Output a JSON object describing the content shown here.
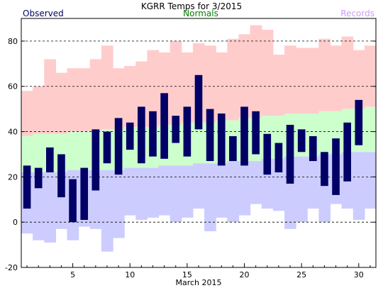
{
  "chart_data": {
    "type": "bar",
    "title": "KGRR Temps for 3/2015",
    "xlabel": "March 2015",
    "ylabel": "",
    "legend": {
      "observed": "Observed",
      "normals": "Normals",
      "records": "Records"
    },
    "colors": {
      "observed": "#000066",
      "normals": "#008000",
      "records": "#cc99ff",
      "record_high_fill": "#ffcccc",
      "normal_fill": "#ccffcc",
      "record_low_fill": "#ccccff"
    },
    "xlim": [
      0.5,
      31.5
    ],
    "ylim": [
      -20,
      90
    ],
    "x_ticks": [
      5,
      10,
      15,
      20,
      25,
      30
    ],
    "y_ticks": [
      -20,
      0,
      20,
      40,
      60,
      80
    ],
    "grid": "dashed horizontal",
    "days": [
      1,
      2,
      3,
      4,
      5,
      6,
      7,
      8,
      9,
      10,
      11,
      12,
      13,
      14,
      15,
      16,
      17,
      18,
      19,
      20,
      21,
      22,
      23,
      24,
      25,
      26,
      27,
      28,
      29,
      30,
      31
    ],
    "record_high": [
      58,
      60,
      72,
      66,
      68,
      68,
      72,
      78,
      68,
      69,
      71,
      76,
      75,
      80,
      75,
      79,
      78,
      75,
      81,
      83,
      87,
      85,
      74,
      78,
      77,
      77,
      81,
      78,
      82,
      76,
      78
    ],
    "normal_high": [
      38,
      39,
      39,
      39,
      40,
      40,
      40,
      41,
      41,
      42,
      42,
      42,
      43,
      43,
      44,
      44,
      44,
      45,
      45,
      46,
      46,
      47,
      47,
      48,
      48,
      48,
      49,
      49,
      50,
      50,
      51
    ],
    "normal_low": [
      22,
      22,
      22,
      22,
      23,
      23,
      23,
      23,
      23,
      24,
      24,
      24,
      25,
      25,
      25,
      26,
      26,
      26,
      27,
      27,
      27,
      28,
      28,
      29,
      29,
      29,
      30,
      30,
      31,
      31,
      31
    ],
    "record_low": [
      -5,
      -8,
      -9,
      -3,
      -8,
      -2,
      -3,
      -13,
      -7,
      3,
      1,
      2,
      3,
      0,
      2,
      6,
      -4,
      2,
      0,
      3,
      8,
      6,
      5,
      -3,
      0,
      6,
      0,
      8,
      6,
      1,
      6
    ],
    "observed_high": [
      25,
      24,
      33,
      30,
      19,
      24,
      41,
      40,
      46,
      44,
      51,
      49,
      57,
      47,
      51,
      65,
      50,
      48,
      38,
      51,
      49,
      39,
      35,
      43,
      41,
      38,
      31,
      37,
      44,
      54,
      null
    ],
    "observed_low": [
      6,
      15,
      22,
      11,
      0,
      1,
      14,
      26,
      21,
      32,
      26,
      29,
      28,
      35,
      29,
      41,
      27,
      25,
      27,
      25,
      30,
      21,
      22,
      17,
      31,
      27,
      16,
      12,
      18,
      34,
      null
    ]
  }
}
